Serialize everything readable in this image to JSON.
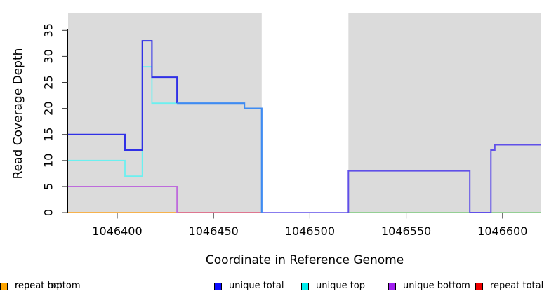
{
  "axes": {
    "x": {
      "label": "Coordinate in Reference Genome",
      "ticks": [
        1046400,
        1046450,
        1046500,
        1046550,
        1046600
      ]
    },
    "y": {
      "label": "Read Coverage Depth",
      "ticks": [
        0,
        5,
        10,
        15,
        20,
        25,
        30,
        35
      ]
    }
  },
  "legend": {
    "items": [
      {
        "label": "unique total",
        "color": "#0D0DFF"
      },
      {
        "label": "unique top",
        "color": "#00EEEE"
      },
      {
        "label": "unique bottom",
        "color": "#A020F0"
      },
      {
        "label": "repeat total",
        "color": "#EE0000"
      },
      {
        "label": "repeat top",
        "color": "#FFFF00"
      },
      {
        "label": "repeat bottom",
        "color": "#FFA500"
      }
    ]
  },
  "chart_data": {
    "type": "line",
    "style": "step",
    "title": "",
    "xlabel": "Coordinate in Reference Genome",
    "ylabel": "Read Coverage Depth",
    "xlim": [
      1046374,
      1046620
    ],
    "ylim": [
      0,
      38
    ],
    "x_ticks": [
      1046400,
      1046450,
      1046500,
      1046550,
      1046600
    ],
    "y_ticks": [
      0,
      5,
      10,
      15,
      20,
      25,
      30,
      35
    ],
    "grid": false,
    "legend_position": "bottom",
    "background_color": "#DBDBDB",
    "shaded_background_regions": [
      [
        1046374.5,
        1046475
      ],
      [
        1046520,
        1046620
      ]
    ],
    "unshaded_gap": [
      1046475,
      1046520
    ],
    "series": [
      {
        "name": "unique total",
        "color": "blue",
        "steps": [
          [
            1046374,
            15
          ],
          [
            1046404,
            12
          ],
          [
            1046413,
            33
          ],
          [
            1046418,
            26
          ],
          [
            1046431,
            21
          ],
          [
            1046466,
            20
          ],
          [
            1046475,
            0
          ],
          [
            1046520,
            8
          ],
          [
            1046583,
            0
          ],
          [
            1046594,
            12
          ],
          [
            1046596,
            13
          ],
          [
            1046620,
            13
          ]
        ]
      },
      {
        "name": "unique top",
        "color": "cyan",
        "steps": [
          [
            1046374,
            10
          ],
          [
            1046404,
            7
          ],
          [
            1046413,
            28
          ],
          [
            1046418,
            21
          ],
          [
            1046466,
            20
          ],
          [
            1046475,
            0
          ],
          [
            1046620,
            0
          ]
        ]
      },
      {
        "name": "unique bottom",
        "color": "purple",
        "steps": [
          [
            1046374,
            5
          ],
          [
            1046431,
            0
          ],
          [
            1046520,
            8
          ],
          [
            1046583,
            0
          ],
          [
            1046594,
            12
          ],
          [
            1046596,
            13
          ],
          [
            1046620,
            13
          ]
        ]
      },
      {
        "name": "repeat total",
        "color": "red",
        "steps": [
          [
            1046374,
            0
          ],
          [
            1046620,
            0
          ]
        ]
      },
      {
        "name": "repeat top",
        "color": "yellow",
        "steps": [
          [
            1046374,
            0
          ],
          [
            1046620,
            0
          ]
        ]
      },
      {
        "name": "repeat bottom",
        "color": "orange",
        "steps": [
          [
            1046374,
            0
          ],
          [
            1046620,
            0
          ]
        ]
      }
    ],
    "drawn_segments": [
      {
        "name": "zero-line-orange",
        "color": "#FFA51E",
        "width": 1.6,
        "points": [
          [
            1046374.5,
            0
          ],
          [
            1046431,
            0
          ]
        ]
      },
      {
        "name": "zero-line-crimson",
        "color": "#E05578",
        "width": 1.6,
        "points": [
          [
            1046431,
            0
          ],
          [
            1046475,
            0
          ]
        ]
      },
      {
        "name": "zero-line-indigo",
        "color": "#6050E8",
        "width": 1.6,
        "points": [
          [
            1046475,
            0
          ],
          [
            1046520,
            0
          ]
        ]
      },
      {
        "name": "zero-line-green",
        "color": "#7CCB7C",
        "width": 1.6,
        "points": [
          [
            1046520,
            0
          ],
          [
            1046620,
            0
          ]
        ]
      },
      {
        "name": "unique-bottom-line",
        "color": "#BE6BDC",
        "width": 1.8,
        "points": [
          [
            1046374.5,
            5
          ],
          [
            1046431,
            5
          ],
          [
            1046431,
            0
          ]
        ]
      },
      {
        "name": "unique-top-line",
        "color": "#6BF0F0",
        "width": 1.8,
        "points": [
          [
            1046374.5,
            10
          ],
          [
            1046404,
            10
          ],
          [
            1046404,
            7
          ],
          [
            1046413,
            7
          ],
          [
            1046413,
            28
          ],
          [
            1046418,
            28
          ],
          [
            1046418,
            21
          ],
          [
            1046431,
            21
          ]
        ]
      },
      {
        "name": "unique-total-line",
        "color": "#3030E6",
        "width": 2,
        "points": [
          [
            1046374.5,
            15
          ],
          [
            1046404,
            15
          ],
          [
            1046404,
            12
          ],
          [
            1046413,
            12
          ],
          [
            1046413,
            33
          ],
          [
            1046418,
            33
          ],
          [
            1046418,
            26
          ],
          [
            1046431,
            26
          ],
          [
            1046431,
            21
          ]
        ]
      },
      {
        "name": "total-top-overlap-line",
        "color": "#3E8BF2",
        "width": 2.2,
        "points": [
          [
            1046431,
            21
          ],
          [
            1046466,
            21
          ],
          [
            1046466,
            20
          ],
          [
            1046475,
            20
          ],
          [
            1046475,
            0
          ]
        ]
      },
      {
        "name": "total-bottom-overlap-line",
        "color": "#6050E8",
        "width": 2,
        "points": [
          [
            1046520,
            0
          ],
          [
            1046520,
            8
          ],
          [
            1046583,
            8
          ],
          [
            1046583,
            0
          ],
          [
            1046594,
            0
          ],
          [
            1046594,
            12
          ],
          [
            1046596,
            12
          ],
          [
            1046596,
            13
          ],
          [
            1046620,
            13
          ]
        ]
      }
    ]
  }
}
